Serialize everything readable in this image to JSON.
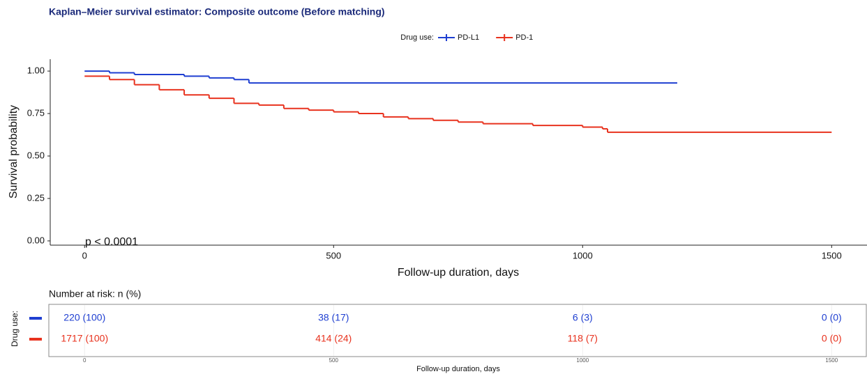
{
  "chart_data": [
    {
      "type": "step",
      "title": "Kaplan–Meier survival estimator: Composite outcome (Before matching)",
      "legend_title": "Drug use:",
      "x_label": "Follow-up duration, days",
      "y_label": "Survival probability",
      "annotation": "p < 0.0001",
      "xlim": [
        -69,
        1571
      ],
      "xticks": [
        0,
        500,
        1000,
        1500
      ],
      "ylim": [
        -0.025,
        1.07
      ],
      "yticks": [
        {
          "value": 1,
          "label": "1.00"
        },
        0.75,
        {
          "value": 0.5,
          "label": "0.50"
        },
        0.25,
        {
          "value": 0,
          "label": "0.00"
        }
      ],
      "series": [
        {
          "name": "PD-L1",
          "color": "#1f3fd1",
          "x": [
            0,
            50,
            100,
            200,
            250,
            300,
            330,
            1190
          ],
          "values": [
            1.0,
            0.99,
            0.98,
            0.97,
            0.96,
            0.95,
            0.93,
            0.93
          ]
        },
        {
          "name": "PD-1",
          "color": "#e8321e",
          "x": [
            0,
            50,
            100,
            150,
            200,
            250,
            300,
            350,
            400,
            450,
            500,
            550,
            600,
            650,
            700,
            750,
            800,
            900,
            1000,
            1040,
            1050,
            1500
          ],
          "values": [
            0.97,
            0.95,
            0.92,
            0.89,
            0.86,
            0.84,
            0.81,
            0.8,
            0.78,
            0.77,
            0.76,
            0.75,
            0.73,
            0.72,
            0.71,
            0.7,
            0.69,
            0.68,
            0.67,
            0.66,
            0.64,
            0.64
          ]
        }
      ]
    },
    {
      "type": "risk-table",
      "title": "Number at risk: n (%)",
      "y_label": "Drug use:",
      "x_label": "Follow-up duration, days",
      "xlim": [
        -69,
        1571
      ],
      "xticks": [
        0,
        500,
        1000,
        1500
      ],
      "x": [
        0,
        500,
        1000,
        1500
      ],
      "series": [
        {
          "name": "PD-L1",
          "color": "#1f3fd1",
          "values": [
            220,
            38,
            6,
            0
          ],
          "value_labels": [
            "220 (100)",
            "38 (17)",
            "6 (3)",
            "0 (0)"
          ]
        },
        {
          "name": "PD-1",
          "color": "#e8321e",
          "values": [
            1717,
            414,
            118,
            0
          ],
          "value_labels": [
            "1717 (100)",
            "414 (24)",
            "118 (7)",
            "0 (0)"
          ]
        }
      ]
    }
  ]
}
